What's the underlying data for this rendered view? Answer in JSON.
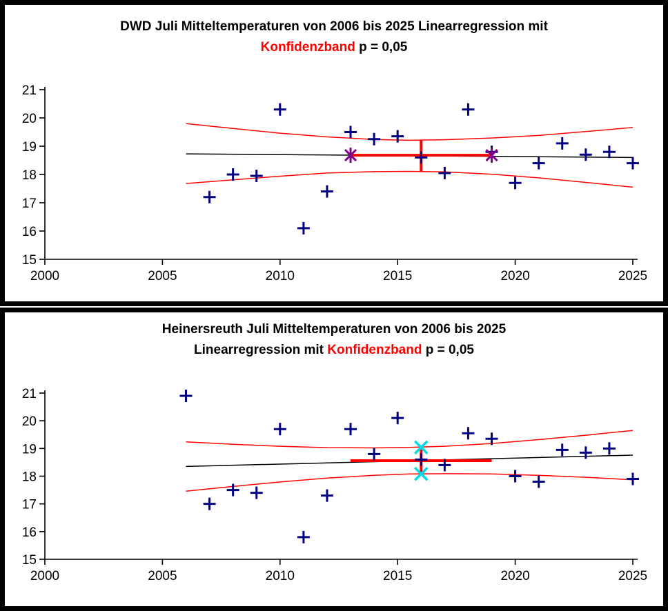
{
  "page": {
    "background": "#FFFFFF",
    "panel_border_color": "#000000",
    "axis_color": "#000000",
    "marker_color": "#000080",
    "band_color": "#FF0000",
    "highlight_color": "#FF0000",
    "asterisk_color": "#80008B",
    "x_marker_color": "#00DDE6"
  },
  "chart_data": [
    {
      "name": "dwd-juli-mitteltemperaturen",
      "type": "scatter",
      "title_line1": [
        {
          "text": "DWD Juli Mitteltemperaturen von 2006 bis 2025 Linearregression mit",
          "color": "#000000"
        }
      ],
      "title_line2": [
        {
          "text": "Konfidenzband",
          "color": "#FF0000"
        },
        {
          "text": " p = 0,05",
          "color": "#000000"
        }
      ],
      "xlim": [
        2000,
        2025
      ],
      "ylim": [
        15,
        21
      ],
      "x_ticks": [
        2000,
        2005,
        2010,
        2015,
        2020,
        2025
      ],
      "y_ticks": [
        15,
        16,
        17,
        18,
        19,
        20,
        21
      ],
      "grid": false,
      "legend": "none",
      "series": [
        {
          "slug": "confidence-band-upper",
          "name": "Konfidenzband obere Grenze",
          "kind": "line",
          "color": "#FF0000",
          "width": 1.5,
          "points": [
            [
              2006,
              19.8
            ],
            [
              2008,
              19.63
            ],
            [
              2010,
              19.46
            ],
            [
              2012,
              19.33
            ],
            [
              2014,
              19.24
            ],
            [
              2015.5,
              19.21
            ],
            [
              2017,
              19.23
            ],
            [
              2019,
              19.29
            ],
            [
              2021,
              19.38
            ],
            [
              2023,
              19.52
            ],
            [
              2025,
              19.66
            ]
          ]
        },
        {
          "slug": "confidence-band-lower",
          "name": "Konfidenzband untere Grenze",
          "kind": "line",
          "color": "#FF0000",
          "width": 1.5,
          "points": [
            [
              2006,
              17.68
            ],
            [
              2008,
              17.81
            ],
            [
              2010,
              17.94
            ],
            [
              2012,
              18.05
            ],
            [
              2014,
              18.1
            ],
            [
              2015.5,
              18.11
            ],
            [
              2017,
              18.09
            ],
            [
              2019,
              18.01
            ],
            [
              2021,
              17.88
            ],
            [
              2023,
              17.72
            ],
            [
              2025,
              17.55
            ]
          ]
        },
        {
          "slug": "regression-line",
          "name": "Linearregression",
          "kind": "line",
          "color": "#000000",
          "width": 1.5,
          "points": [
            [
              2006,
              18.73
            ],
            [
              2025,
              18.6
            ]
          ]
        },
        {
          "slug": "mean-interval-horizontal-line",
          "name": "Markierung 2013 bis 2019",
          "kind": "line",
          "color": "#FF0000",
          "width": 4,
          "points": [
            [
              2013,
              18.68
            ],
            [
              2019,
              18.68
            ]
          ]
        },
        {
          "slug": "confidence-interval-2016-line",
          "name": "Konfidenzintervall bei 2016",
          "kind": "line",
          "color": "#FF0000",
          "width": 4,
          "points": [
            [
              2016,
              18.11
            ],
            [
              2016,
              19.21
            ]
          ]
        },
        {
          "slug": "data-points",
          "name": "Juli Mitteltemperatur Messwerte",
          "kind": "marker",
          "marker": "plus",
          "color": "#000080",
          "points": [
            [
              2007,
              17.2
            ],
            [
              2008,
              18.0
            ],
            [
              2009,
              17.95
            ],
            [
              2010,
              20.3
            ],
            [
              2011,
              16.1
            ],
            [
              2012,
              17.4
            ],
            [
              2013,
              19.5
            ],
            [
              2014,
              19.25
            ],
            [
              2015,
              19.35
            ],
            [
              2016,
              18.6
            ],
            [
              2017,
              18.05
            ],
            [
              2018,
              20.3
            ],
            [
              2019,
              18.8
            ],
            [
              2020,
              17.7
            ],
            [
              2021,
              18.4
            ],
            [
              2022,
              19.1
            ],
            [
              2023,
              18.7
            ],
            [
              2024,
              18.8
            ],
            [
              2025,
              18.4
            ]
          ]
        },
        {
          "slug": "interval-endpoint-asterisk-markers",
          "name": "Intervall Endpunkte",
          "kind": "marker",
          "marker": "asterisk",
          "color": "#80008B",
          "points": [
            [
              2013,
              18.68
            ],
            [
              2019,
              18.68
            ]
          ]
        }
      ]
    },
    {
      "name": "heinersreuth-juli-mitteltemperaturen",
      "type": "scatter",
      "title_line1": [
        {
          "text": "Heinersreuth Juli Mitteltemperaturen von 2006 bis 2025",
          "color": "#000000"
        }
      ],
      "title_line2": [
        {
          "text": "Linearregression mit ",
          "color": "#000000"
        },
        {
          "text": "Konfidenzband",
          "color": "#FF0000"
        },
        {
          "text": " p = 0,05",
          "color": "#000000"
        }
      ],
      "xlim": [
        2000,
        2025
      ],
      "ylim": [
        15,
        21
      ],
      "x_ticks": [
        2000,
        2005,
        2010,
        2015,
        2020,
        2025
      ],
      "y_ticks": [
        15,
        16,
        17,
        18,
        19,
        20,
        21
      ],
      "grid": false,
      "legend": "none",
      "series": [
        {
          "slug": "confidence-band-upper",
          "name": "Konfidenzband obere Grenze",
          "kind": "line",
          "color": "#FF0000",
          "width": 1.5,
          "points": [
            [
              2006,
              19.24
            ],
            [
              2008,
              19.15
            ],
            [
              2010,
              19.08
            ],
            [
              2012,
              19.03
            ],
            [
              2014,
              19.02
            ],
            [
              2015.5,
              19.04
            ],
            [
              2017,
              19.08
            ],
            [
              2019,
              19.18
            ],
            [
              2021,
              19.32
            ],
            [
              2023,
              19.48
            ],
            [
              2025,
              19.65
            ]
          ]
        },
        {
          "slug": "confidence-band-lower",
          "name": "Konfidenzband untere Grenze",
          "kind": "line",
          "color": "#FF0000",
          "width": 1.5,
          "points": [
            [
              2006,
              17.46
            ],
            [
              2008,
              17.63
            ],
            [
              2010,
              17.79
            ],
            [
              2012,
              17.93
            ],
            [
              2014,
              18.03
            ],
            [
              2015.5,
              18.08
            ],
            [
              2017,
              18.09
            ],
            [
              2019,
              18.08
            ],
            [
              2021,
              18.03
            ],
            [
              2023,
              17.96
            ],
            [
              2025,
              17.87
            ]
          ]
        },
        {
          "slug": "regression-line",
          "name": "Linearregression",
          "kind": "line",
          "color": "#000000",
          "width": 1.5,
          "points": [
            [
              2006,
              18.35
            ],
            [
              2025,
              18.76
            ]
          ]
        },
        {
          "slug": "mean-interval-horizontal-line",
          "name": "Markierung 2013 bis 2019",
          "kind": "line",
          "color": "#FF0000",
          "width": 4,
          "points": [
            [
              2013,
              18.56
            ],
            [
              2019,
              18.56
            ]
          ]
        },
        {
          "slug": "confidence-interval-2016-line",
          "name": "Konfidenzintervall bei 2016",
          "kind": "line",
          "color": "#FF0000",
          "width": 4,
          "points": [
            [
              2016,
              18.08
            ],
            [
              2016,
              19.04
            ]
          ]
        },
        {
          "slug": "data-points",
          "name": "Juli Mitteltemperatur Messwerte",
          "kind": "marker",
          "marker": "plus",
          "color": "#000080",
          "points": [
            [
              2006,
              20.9
            ],
            [
              2007,
              17.0
            ],
            [
              2008,
              17.5
            ],
            [
              2009,
              17.4
            ],
            [
              2010,
              19.7
            ],
            [
              2011,
              15.8
            ],
            [
              2012,
              17.3
            ],
            [
              2013,
              19.7
            ],
            [
              2014,
              18.8
            ],
            [
              2015,
              20.1
            ],
            [
              2016,
              18.6
            ],
            [
              2017,
              18.4
            ],
            [
              2018,
              19.55
            ],
            [
              2019,
              19.35
            ],
            [
              2020,
              18.0
            ],
            [
              2021,
              17.8
            ],
            [
              2022,
              18.95
            ],
            [
              2023,
              18.85
            ],
            [
              2024,
              19.0
            ],
            [
              2025,
              17.9
            ]
          ]
        },
        {
          "slug": "interval-endpoint-x-markers",
          "name": "Konfidenzintervall Endpunkte",
          "kind": "marker",
          "marker": "x",
          "color": "#00DDE6",
          "points": [
            [
              2016,
              19.04
            ],
            [
              2016,
              18.08
            ]
          ]
        }
      ]
    }
  ]
}
